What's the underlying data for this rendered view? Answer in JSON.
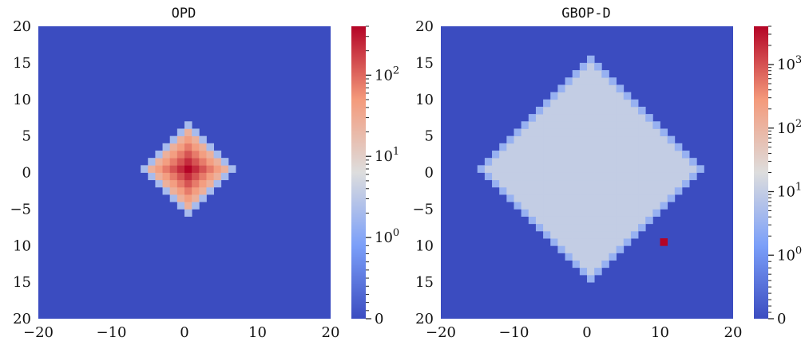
{
  "chart_data": [
    {
      "type": "heatmap",
      "title": "OPD",
      "xlim": [
        -20,
        20
      ],
      "ylim": [
        -20,
        20
      ],
      "xticks": [
        "−20",
        "−10",
        "0",
        "10",
        "20"
      ],
      "yticks": [
        "20",
        "15",
        "10",
        "5",
        "0",
        "−5",
        "10",
        "15",
        "20"
      ],
      "colorscale": "coolwarm",
      "color_scale_type": "symlog",
      "background_value": 0,
      "colorbar": {
        "max": 400,
        "tick_labels": [
          "10^2",
          "10^1",
          "10^0",
          "0"
        ],
        "tick_values": [
          100,
          10,
          1,
          0
        ]
      },
      "pattern": {
        "shape": "diamond",
        "center": [
          0,
          0
        ],
        "radius": 6,
        "peak_value": 400,
        "rim_value": 2,
        "decay": 0.55
      },
      "spikes": []
    },
    {
      "type": "heatmap",
      "title": "GBOP-D",
      "xlim": [
        -20,
        20
      ],
      "ylim": [
        -20,
        20
      ],
      "xticks": [
        "−20",
        "−10",
        "0",
        "10",
        "20"
      ],
      "yticks": [
        "20",
        "15",
        "10",
        "5",
        "0",
        "−5",
        "10",
        "15",
        "20"
      ],
      "colorscale": "coolwarm",
      "color_scale_type": "symlog",
      "background_value": 0,
      "colorbar": {
        "max": 4000,
        "tick_labels": [
          "10^3",
          "10^2",
          "10^1",
          "10^0",
          "0"
        ],
        "tick_values": [
          1000,
          100,
          10,
          1,
          0
        ]
      },
      "pattern": {
        "shape": "tilted-square",
        "center": [
          0,
          0
        ],
        "radius": 15,
        "fill_value": 10,
        "rim_value": 3,
        "notch": {
          "center": [
            10,
            -10
          ],
          "radius": 3
        }
      },
      "spikes": [
        {
          "x": 10,
          "y": -10,
          "value": 4000
        }
      ]
    }
  ]
}
